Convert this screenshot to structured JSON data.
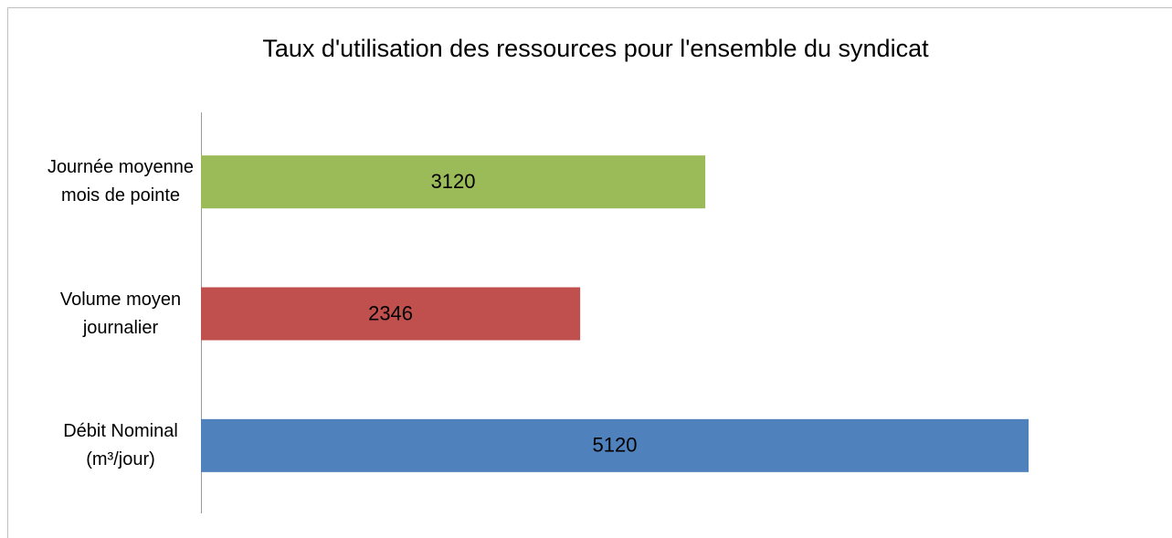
{
  "chart_data": {
    "type": "bar",
    "orientation": "horizontal",
    "title": "Taux d'utilisation des ressources pour l'ensemble du syndicat",
    "categories": [
      "Journée moyenne mois de pointe",
      "Volume moyen journalier",
      "Débit Nominal (m³/jour)"
    ],
    "values": [
      3120,
      2346,
      5120
    ],
    "colors": [
      "#9bbb59",
      "#c0504d",
      "#4f81bd"
    ],
    "xlim": [
      0,
      5120
    ]
  }
}
